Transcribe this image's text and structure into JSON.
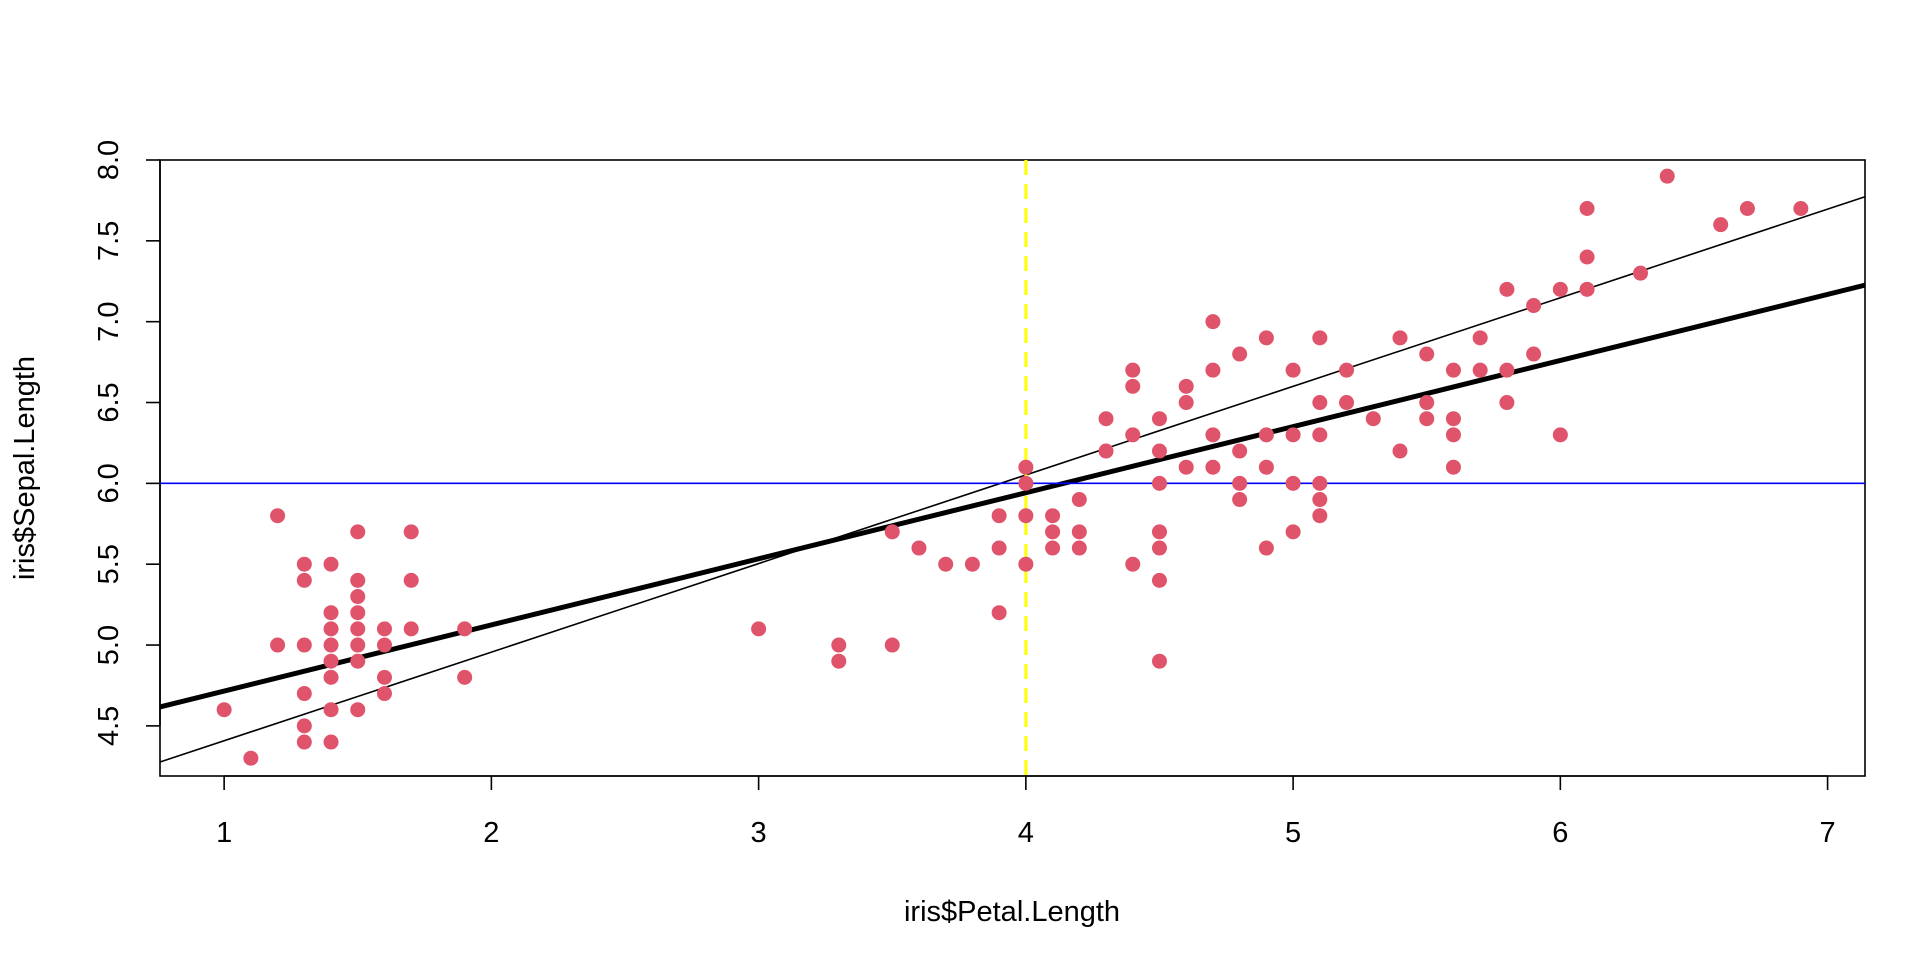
{
  "chart_data": {
    "type": "scatter",
    "xlabel": "iris$Petal.Length",
    "ylabel": "iris$Sepal.Length",
    "xlim": [
      0.76,
      7.14
    ],
    "ylim": [
      4.19,
      8.0
    ],
    "x_ticks": [
      1,
      2,
      3,
      4,
      5,
      6,
      7
    ],
    "x_tick_labels": [
      "1",
      "2",
      "3",
      "4",
      "5",
      "6",
      "7"
    ],
    "y_ticks": [
      4.5,
      5.0,
      5.5,
      6.0,
      6.5,
      7.0,
      7.5,
      8.0
    ],
    "y_tick_labels": [
      "4.5",
      "5.0",
      "5.5",
      "6.0",
      "6.5",
      "7.0",
      "7.5",
      "8.0"
    ],
    "grid": false,
    "point_color": "#DF536B",
    "points": [
      [
        1.0,
        4.6
      ],
      [
        1.1,
        4.3
      ],
      [
        1.2,
        5.8
      ],
      [
        1.2,
        5.0
      ],
      [
        1.3,
        5.5
      ],
      [
        1.3,
        5.4
      ],
      [
        1.3,
        5.0
      ],
      [
        1.3,
        4.7
      ],
      [
        1.3,
        4.5
      ],
      [
        1.3,
        4.4
      ],
      [
        1.4,
        5.5
      ],
      [
        1.4,
        5.2
      ],
      [
        1.4,
        5.1
      ],
      [
        1.4,
        5.0
      ],
      [
        1.4,
        4.9
      ],
      [
        1.4,
        4.8
      ],
      [
        1.4,
        4.6
      ],
      [
        1.4,
        4.4
      ],
      [
        1.5,
        5.7
      ],
      [
        1.5,
        5.4
      ],
      [
        1.5,
        5.3
      ],
      [
        1.5,
        5.2
      ],
      [
        1.5,
        5.1
      ],
      [
        1.5,
        5.0
      ],
      [
        1.5,
        4.9
      ],
      [
        1.5,
        4.6
      ],
      [
        1.6,
        5.1
      ],
      [
        1.6,
        5.0
      ],
      [
        1.6,
        4.8
      ],
      [
        1.6,
        4.7
      ],
      [
        1.7,
        5.7
      ],
      [
        1.7,
        5.4
      ],
      [
        1.7,
        5.1
      ],
      [
        1.9,
        5.1
      ],
      [
        1.9,
        4.8
      ],
      [
        3.0,
        5.1
      ],
      [
        3.3,
        5.0
      ],
      [
        3.3,
        4.9
      ],
      [
        3.5,
        5.7
      ],
      [
        3.5,
        5.0
      ],
      [
        3.6,
        5.6
      ],
      [
        3.7,
        5.5
      ],
      [
        3.8,
        5.5
      ],
      [
        3.9,
        5.8
      ],
      [
        3.9,
        5.6
      ],
      [
        3.9,
        5.2
      ],
      [
        4.0,
        6.1
      ],
      [
        4.0,
        6.0
      ],
      [
        4.0,
        5.8
      ],
      [
        4.0,
        5.5
      ],
      [
        4.1,
        5.8
      ],
      [
        4.1,
        5.7
      ],
      [
        4.1,
        5.6
      ],
      [
        4.2,
        5.9
      ],
      [
        4.2,
        5.7
      ],
      [
        4.2,
        5.6
      ],
      [
        4.3,
        6.4
      ],
      [
        4.3,
        6.2
      ],
      [
        4.4,
        6.7
      ],
      [
        4.4,
        6.6
      ],
      [
        4.4,
        6.3
      ],
      [
        4.4,
        5.5
      ],
      [
        4.5,
        6.4
      ],
      [
        4.5,
        6.2
      ],
      [
        4.5,
        6.0
      ],
      [
        4.5,
        5.7
      ],
      [
        4.5,
        5.6
      ],
      [
        4.5,
        5.4
      ],
      [
        4.5,
        4.9
      ],
      [
        4.6,
        6.6
      ],
      [
        4.6,
        6.5
      ],
      [
        4.6,
        6.1
      ],
      [
        4.7,
        7.0
      ],
      [
        4.7,
        6.7
      ],
      [
        4.7,
        6.3
      ],
      [
        4.7,
        6.1
      ],
      [
        4.8,
        6.8
      ],
      [
        4.8,
        6.2
      ],
      [
        4.8,
        6.0
      ],
      [
        4.8,
        5.9
      ],
      [
        4.9,
        6.9
      ],
      [
        4.9,
        6.3
      ],
      [
        4.9,
        6.1
      ],
      [
        4.9,
        5.6
      ],
      [
        5.0,
        6.7
      ],
      [
        5.0,
        6.3
      ],
      [
        5.0,
        6.0
      ],
      [
        5.0,
        5.7
      ],
      [
        5.1,
        6.9
      ],
      [
        5.1,
        6.5
      ],
      [
        5.1,
        6.3
      ],
      [
        5.1,
        6.0
      ],
      [
        5.1,
        5.9
      ],
      [
        5.1,
        5.8
      ],
      [
        5.2,
        6.7
      ],
      [
        5.2,
        6.5
      ],
      [
        5.3,
        6.4
      ],
      [
        5.4,
        6.9
      ],
      [
        5.4,
        6.2
      ],
      [
        5.5,
        6.8
      ],
      [
        5.5,
        6.5
      ],
      [
        5.5,
        6.4
      ],
      [
        5.6,
        6.7
      ],
      [
        5.6,
        6.4
      ],
      [
        5.6,
        6.3
      ],
      [
        5.6,
        6.1
      ],
      [
        5.7,
        6.9
      ],
      [
        5.7,
        6.7
      ],
      [
        5.8,
        7.2
      ],
      [
        5.8,
        6.7
      ],
      [
        5.8,
        6.5
      ],
      [
        5.9,
        7.1
      ],
      [
        5.9,
        6.8
      ],
      [
        6.0,
        7.2
      ],
      [
        6.0,
        6.3
      ],
      [
        6.1,
        7.7
      ],
      [
        6.1,
        7.4
      ],
      [
        6.1,
        7.2
      ],
      [
        6.3,
        7.3
      ],
      [
        6.4,
        7.9
      ],
      [
        6.6,
        7.6
      ],
      [
        6.7,
        7.7
      ],
      [
        6.9,
        7.7
      ]
    ],
    "lines": [
      {
        "kind": "abline",
        "intercept": 4.3066,
        "slope": 0.4089,
        "color": "#000000",
        "width": "thick"
      },
      {
        "kind": "abline",
        "intercept": 3.86,
        "slope": 0.548,
        "color": "#000000",
        "width": "thin"
      },
      {
        "kind": "hline",
        "y": 6.0,
        "color": "#0000FF",
        "style": "solid"
      },
      {
        "kind": "vline",
        "x": 4.0,
        "color": "#FFFF00",
        "style": "dashed"
      }
    ]
  }
}
